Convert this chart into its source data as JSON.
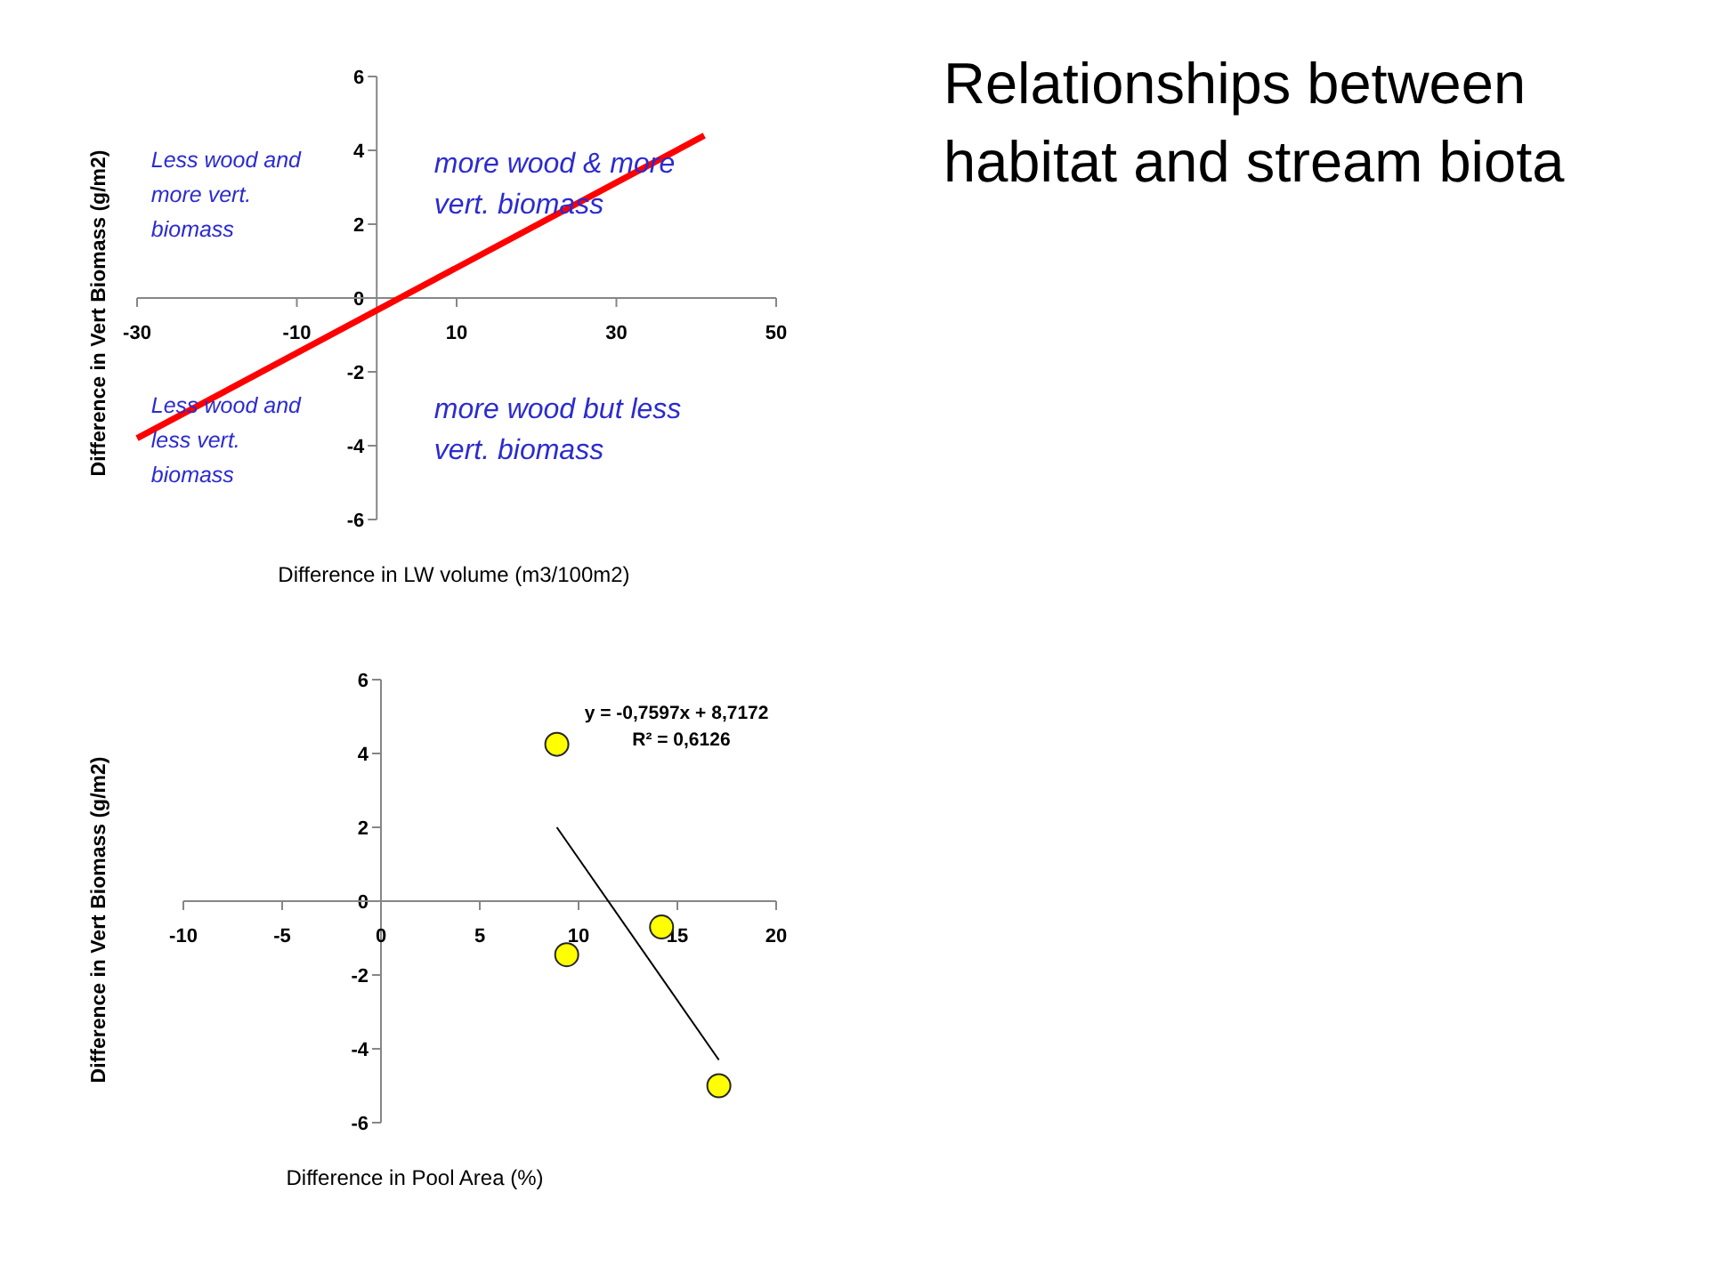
{
  "chart_data": [
    {
      "type": "line",
      "xlabel": "Difference in LW volume (m3/100m2)",
      "ylabel": "Difference in Vert Biomass (g/m2)",
      "annotations": [
        "Less wood and more vert. biomass",
        "more wood & more vert. biomass",
        "Less wood and less vert. biomass",
        "more wood but less vert. biomass"
      ],
      "series": [
        {
          "x": [
            -30,
            41
          ],
          "values": [
            -3.8,
            4.4
          ],
          "color": "#ff0000"
        }
      ],
      "xlim": [
        -30,
        50
      ],
      "ylim": [
        -6,
        6
      ],
      "xticks": [
        -30,
        -10,
        10,
        30,
        50
      ],
      "yticks": [
        -6,
        -4,
        -2,
        0,
        2,
        4,
        6
      ]
    },
    {
      "type": "other",
      "title": "Relationships between habitat and stream biota"
    },
    {
      "type": "scatter",
      "xlabel": "Difference in Pool Area (%)",
      "ylabel": "Difference in Vert Biomass (g/m2)",
      "annotations": [
        "y = -0,7597x + 8,7172",
        "R² = 0,6126"
      ],
      "series": [
        {
          "type": "scatter",
          "x": [
            8.9,
            9.4,
            14.2,
            17.1
          ],
          "values": [
            4.25,
            -1.45,
            -0.7,
            -5
          ],
          "color": "#ffff00",
          "marker": "circle"
        },
        {
          "type": "line",
          "x": [
            8.9,
            17.1
          ],
          "values": [
            2,
            -4.3
          ],
          "color": "#000000"
        }
      ],
      "xlim": [
        -10,
        20
      ],
      "ylim": [
        -6,
        6
      ],
      "xticks": [
        -10,
        -5,
        0,
        5,
        10,
        15,
        20
      ],
      "yticks": [
        -6,
        -4,
        -2,
        0,
        2,
        4,
        6
      ]
    }
  ]
}
